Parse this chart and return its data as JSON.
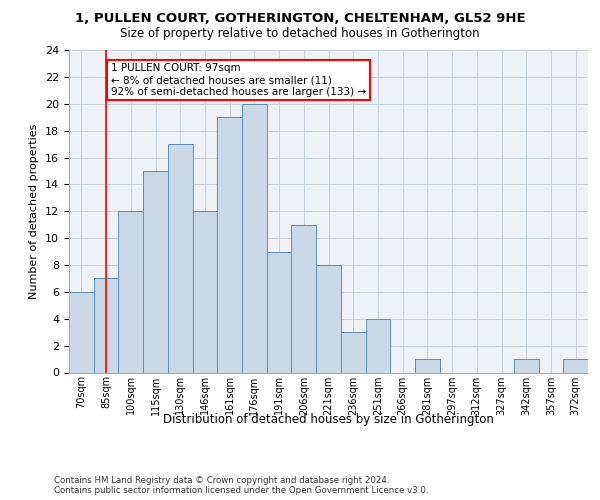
{
  "title_line1": "1, PULLEN COURT, GOTHERINGTON, CHELTENHAM, GL52 9HE",
  "title_line2": "Size of property relative to detached houses in Gotherington",
  "xlabel": "Distribution of detached houses by size in Gotherington",
  "ylabel": "Number of detached properties",
  "footer_line1": "Contains HM Land Registry data © Crown copyright and database right 2024.",
  "footer_line2": "Contains public sector information licensed under the Open Government Licence v3.0.",
  "bin_labels": [
    "70sqm",
    "85sqm",
    "100sqm",
    "115sqm",
    "130sqm",
    "146sqm",
    "161sqm",
    "176sqm",
    "191sqm",
    "206sqm",
    "221sqm",
    "236sqm",
    "251sqm",
    "266sqm",
    "281sqm",
    "297sqm",
    "312sqm",
    "327sqm",
    "342sqm",
    "357sqm",
    "372sqm"
  ],
  "bar_values": [
    6,
    7,
    12,
    15,
    17,
    12,
    19,
    20,
    9,
    11,
    8,
    3,
    4,
    0,
    1,
    0,
    0,
    0,
    1,
    0,
    1
  ],
  "bar_color": "#c9d9e8",
  "bar_edge_color": "#5b8db8",
  "grid_color": "#c8d0da",
  "background_color": "#eef2f7",
  "annotation_text": "1 PULLEN COURT: 97sqm\n← 8% of detached houses are smaller (11)\n92% of semi-detached houses are larger (133) →",
  "annotation_box_color": "white",
  "annotation_box_edge": "red",
  "vline_x": 1,
  "vline_color": "red",
  "ylim": [
    0,
    24
  ],
  "yticks": [
    0,
    2,
    4,
    6,
    8,
    10,
    12,
    14,
    16,
    18,
    20,
    22,
    24
  ]
}
